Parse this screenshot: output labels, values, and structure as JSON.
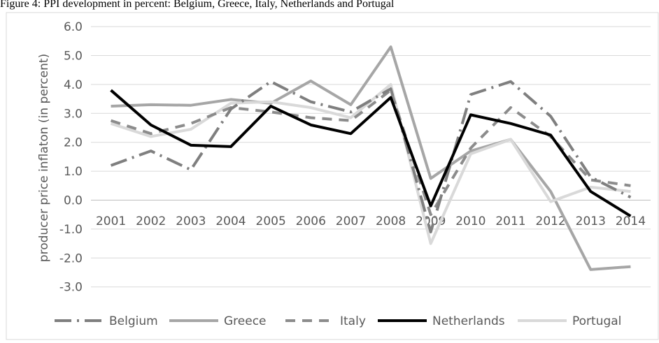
{
  "caption": "Figure 4: PPI development in percent: Belgium, Greece, Italy, Netherlands and Portugal",
  "chart_data": {
    "type": "line",
    "title": "",
    "xlabel": "",
    "ylabel": "producer price inflaton (in percent)",
    "ylim": [
      -3.0,
      6.0
    ],
    "y_ticks": [
      "6.0",
      "5.0",
      "4.0",
      "3.0",
      "2.0",
      "1.0",
      "0.0",
      "-1.0",
      "-2.0",
      "-3.0"
    ],
    "categories": [
      "2001",
      "2002",
      "2003",
      "2004",
      "2005",
      "2006",
      "2007",
      "2008",
      "2009",
      "2010",
      "2011",
      "2012",
      "2013",
      "2014"
    ],
    "grid": true,
    "legend_position": "bottom",
    "series": [
      {
        "name": "Belgium",
        "color": "#7f7f7f",
        "dash": "long-dash-dot",
        "values": [
          1.2,
          1.7,
          1.05,
          3.15,
          4.1,
          3.4,
          3.05,
          3.85,
          -1.1,
          3.65,
          4.1,
          2.9,
          0.8,
          0.1
        ]
      },
      {
        "name": "Greece",
        "color": "#a6a6a6",
        "dash": "solid",
        "values": [
          3.25,
          3.3,
          3.28,
          3.48,
          3.35,
          4.12,
          3.3,
          5.3,
          0.75,
          1.7,
          2.1,
          0.3,
          -2.4,
          -2.3
        ]
      },
      {
        "name": "Italy",
        "color": "#8c8c8c",
        "dash": "dash",
        "values": [
          2.75,
          2.3,
          2.65,
          3.2,
          3.05,
          2.85,
          2.75,
          3.8,
          -0.5,
          1.8,
          3.2,
          2.2,
          0.7,
          0.5
        ]
      },
      {
        "name": "Netherlands",
        "color": "#000000",
        "dash": "solid",
        "values": [
          3.8,
          2.6,
          1.9,
          1.85,
          3.25,
          2.6,
          2.3,
          3.55,
          -0.2,
          2.95,
          2.65,
          2.25,
          0.3,
          -0.55
        ]
      },
      {
        "name": "Portugal",
        "color": "#d9d9d9",
        "dash": "solid",
        "values": [
          2.65,
          2.2,
          2.45,
          3.35,
          3.4,
          3.2,
          2.85,
          4.0,
          -1.5,
          1.6,
          2.1,
          -0.05,
          0.45,
          0.3
        ]
      }
    ]
  }
}
